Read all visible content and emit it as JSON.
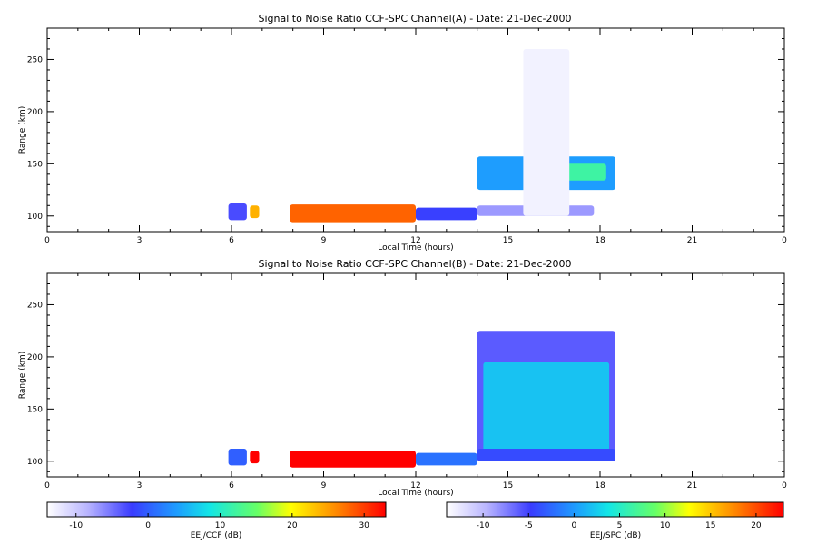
{
  "chart_data": [
    {
      "type": "heatmap",
      "title": "Signal to Noise Ratio CCF-SPC Channel(A) - Date: 21-Dec-2000",
      "xlabel": "Local Time (hours)",
      "ylabel": "Range (km)",
      "xlim": [
        0,
        24
      ],
      "ylim": [
        85,
        280
      ],
      "xticks": [
        "0",
        "3",
        "6",
        "9",
        "12",
        "15",
        "18",
        "21",
        "0"
      ],
      "yticks": [
        100,
        150,
        200,
        250
      ],
      "regions": [
        {
          "x": [
            5.9,
            6.5
          ],
          "y": [
            96,
            112
          ],
          "snr_db": -3
        },
        {
          "x": [
            6.6,
            6.9
          ],
          "y": [
            98,
            110
          ],
          "snr_db": 24
        },
        {
          "x": [
            7.9,
            12.0
          ],
          "y": [
            94,
            111
          ],
          "snr_db": 28
        },
        {
          "x": [
            12.0,
            14.0
          ],
          "y": [
            96,
            108
          ],
          "snr_db": -2
        },
        {
          "x": [
            14.0,
            18.5
          ],
          "y": [
            125,
            157
          ],
          "snr_db": 4
        },
        {
          "x": [
            16.5,
            18.2
          ],
          "y": [
            134,
            150
          ],
          "snr_db": 12
        },
        {
          "x": [
            14.0,
            17.8
          ],
          "y": [
            100,
            110
          ],
          "snr_db": -7
        },
        {
          "x": [
            15.5,
            17.0
          ],
          "y": [
            100,
            260
          ],
          "snr_db": -13
        }
      ]
    },
    {
      "type": "heatmap",
      "title": "Signal to Noise Ratio CCF-SPC Channel(B) - Date: 21-Dec-2000",
      "xlabel": "Local Time (hours)",
      "ylabel": "Range (km)",
      "xlim": [
        0,
        24
      ],
      "ylim": [
        85,
        280
      ],
      "xticks": [
        "0",
        "3",
        "6",
        "9",
        "12",
        "15",
        "18",
        "21",
        "0"
      ],
      "yticks": [
        100,
        150,
        200,
        250
      ],
      "regions": [
        {
          "x": [
            5.9,
            6.5
          ],
          "y": [
            96,
            112
          ],
          "snr_db": -3
        },
        {
          "x": [
            6.6,
            6.9
          ],
          "y": [
            98,
            110
          ],
          "snr_db": 24
        },
        {
          "x": [
            7.9,
            12.0
          ],
          "y": [
            94,
            110
          ],
          "snr_db": 26
        },
        {
          "x": [
            12.0,
            14.0
          ],
          "y": [
            96,
            108
          ],
          "snr_db": -2
        },
        {
          "x": [
            14.0,
            18.5
          ],
          "y": [
            100,
            225
          ],
          "snr_db": -6
        },
        {
          "x": [
            14.2,
            18.3
          ],
          "y": [
            108,
            195
          ],
          "snr_db": 2
        },
        {
          "x": [
            14.0,
            18.5
          ],
          "y": [
            100,
            112
          ],
          "snr_db": -4
        }
      ]
    }
  ],
  "colorbars": [
    {
      "label": "EEJ/CCF (dB)",
      "range": [
        -14,
        33
      ],
      "ticks": [
        "-10",
        "0",
        "10",
        "20",
        "30"
      ]
    },
    {
      "label": "EEJ/SPC (dB)",
      "range": [
        -14,
        23
      ],
      "ticks": [
        "-10",
        "-5",
        "0",
        "5",
        "10",
        "15",
        "20"
      ]
    }
  ]
}
